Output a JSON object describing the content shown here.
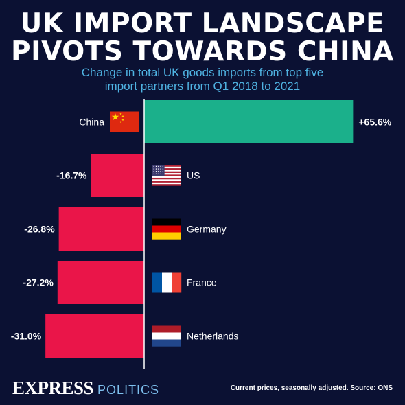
{
  "header": {
    "title_line1": "UK IMPORT LANDSCAPE",
    "title_line2": "PIVOTS TOWARDS CHINA",
    "subtitle_line1": "Change in total UK goods imports from top five",
    "subtitle_line2": "import partners from Q1 2018 to 2021"
  },
  "footer": {
    "brand": "EXPRESS",
    "brand_section": "POLITICS",
    "source": "Current prices, seasonally adjusted. Source: ONS"
  },
  "colors": {
    "positive": "#1bb08b",
    "negative": "#ea1549",
    "background": "#0b1133",
    "subtitle": "#4fb3e2"
  },
  "chart_data": {
    "type": "bar",
    "orientation": "horizontal",
    "title": "UK IMPORT LANDSCAPE PIVOTS TOWARDS CHINA",
    "subtitle": "Change in total UK goods imports from top five import partners from Q1 2018 to 2021",
    "categories": [
      "China",
      "US",
      "Germany",
      "France",
      "Netherlands"
    ],
    "values": [
      65.6,
      -16.7,
      -26.8,
      -27.2,
      -31.0
    ],
    "value_labels": [
      "+65.6%",
      "-16.7%",
      "-26.8%",
      "-27.2%",
      "-31.0%"
    ],
    "flags": [
      "china-flag-icon",
      "us-flag-icon",
      "germany-flag-icon",
      "france-flag-icon",
      "netherlands-flag-icon"
    ],
    "unit": "%",
    "grid": false,
    "legend": "none"
  }
}
